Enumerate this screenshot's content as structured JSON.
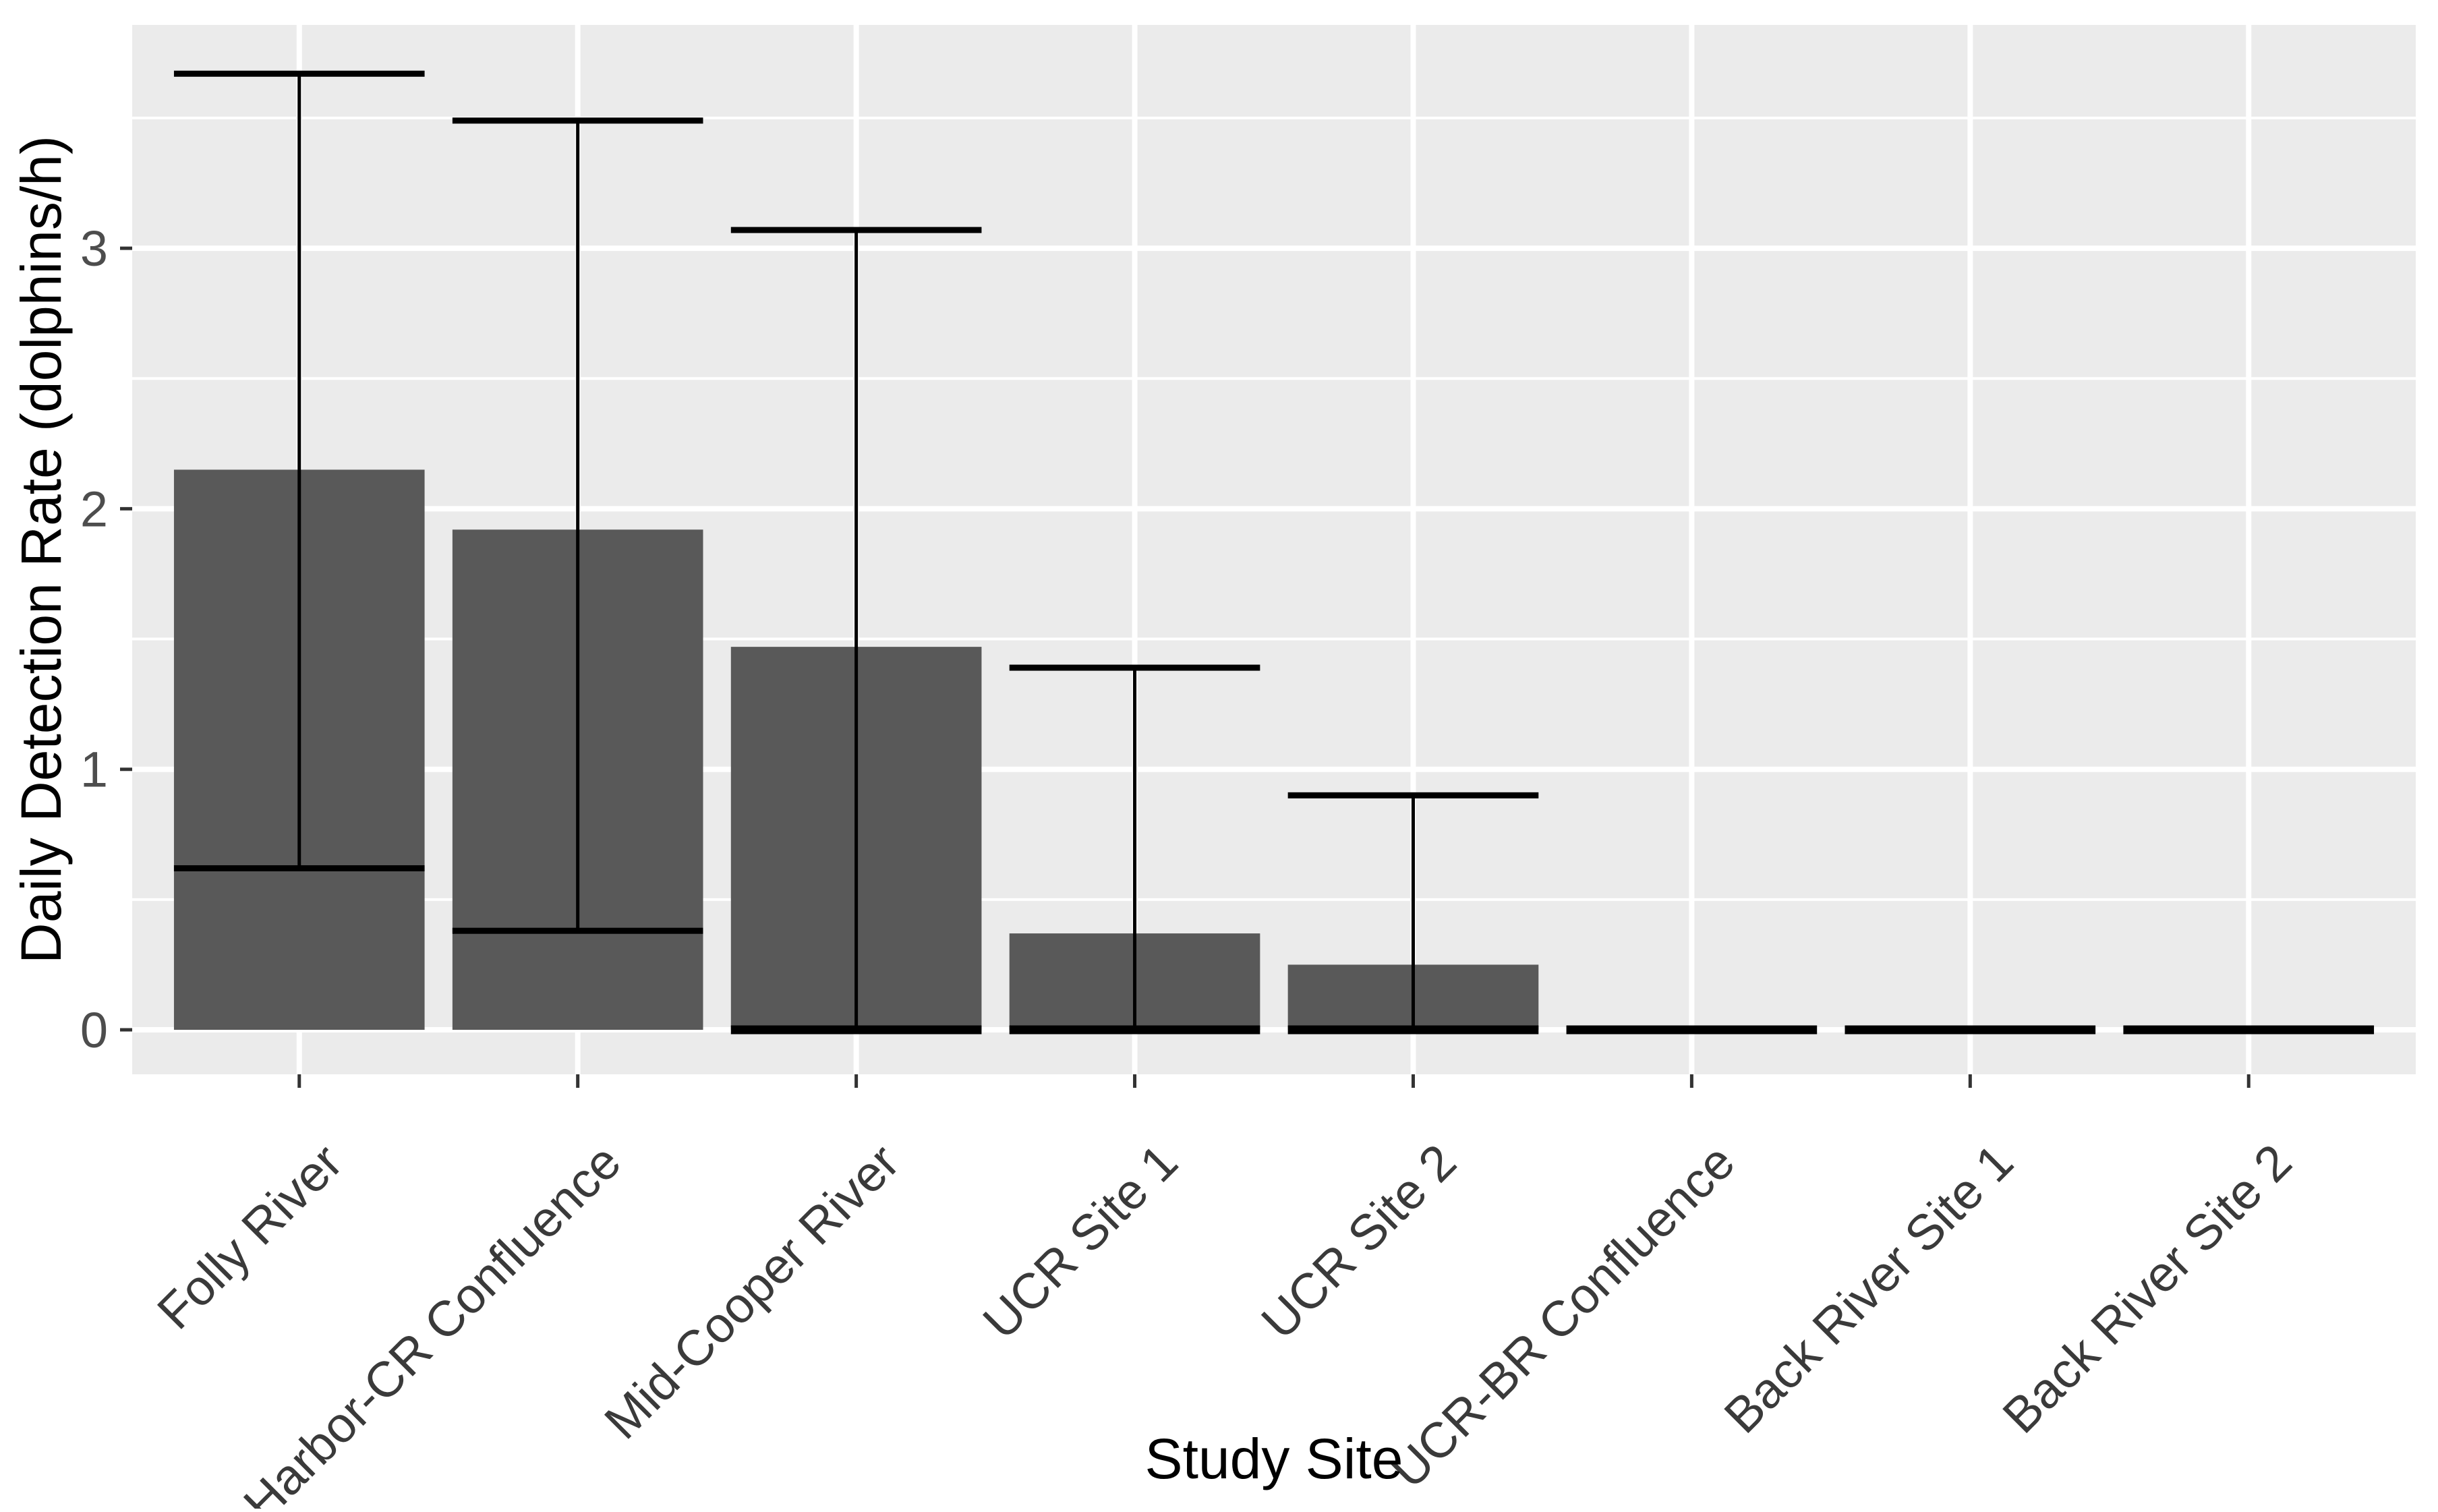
{
  "figure": {
    "xlabel": "Study Site",
    "ylabel": "Daily Detection Rate (dolphins/h)"
  },
  "chart_data": {
    "type": "bar",
    "title": "",
    "xlabel": "Study Site",
    "ylabel": "Daily Detection Rate (dolphins/h)",
    "categories": [
      "Folly River",
      "Harbor-CR Confluence",
      "Mid-Cooper River",
      "UCR Site 1",
      "UCR Site 2",
      "UCR-BR Confluence",
      "Back River Site 1",
      "Back River Site 2"
    ],
    "series": [
      {
        "name": "Daily Detection Rate",
        "values": [
          2.15,
          1.92,
          1.47,
          0.37,
          0.25,
          0,
          0,
          0
        ]
      }
    ],
    "error_bars": {
      "lower": [
        0.62,
        0.38,
        0,
        0,
        0,
        0,
        0,
        0
      ],
      "upper": [
        3.67,
        3.49,
        3.07,
        1.39,
        0.9,
        0,
        0,
        0
      ]
    },
    "ytick_labels": [
      "0",
      "1",
      "2",
      "3"
    ],
    "yticks": [
      0,
      1,
      2,
      3
    ],
    "yminor": [
      0.5,
      1.5,
      2.5,
      3.5
    ],
    "ylim": [
      -0.17,
      3.86
    ],
    "grid": "major+minor, white on gray panel",
    "legend": false,
    "bar_width_fraction": 0.9,
    "x_label_angle_deg": 45,
    "colors": {
      "bar_fill": "#595959",
      "panel_bg": "#EBEBEB",
      "grid": "#FFFFFF",
      "error_bar": "#000000",
      "tick_mark": "#333333",
      "tick_label_text": "#4D4D4D",
      "x_label_text": "#3A3A3A",
      "axis_title_text": "#000000",
      "background": "#FFFFFF"
    }
  }
}
